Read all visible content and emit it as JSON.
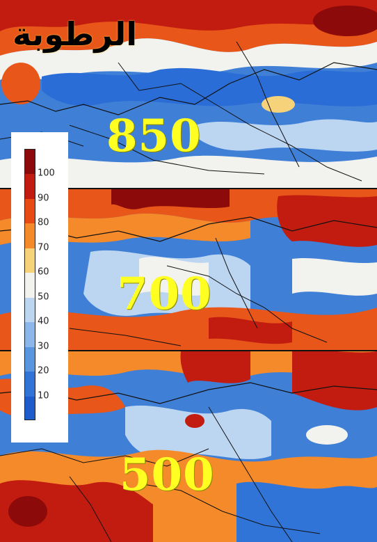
{
  "map": {
    "title": "الرطوبة",
    "levels": [
      {
        "id": "850",
        "label": "850"
      },
      {
        "id": "700",
        "label": "700"
      },
      {
        "id": "500",
        "label": "500"
      }
    ]
  },
  "legend": {
    "ticks": [
      "100",
      "90",
      "80",
      "70",
      "60",
      "50",
      "40",
      "30",
      "20",
      "10"
    ],
    "colors": [
      "#8c0a0a",
      "#c21c10",
      "#e84a14",
      "#f58a2a",
      "#f6d27a",
      "#f2f2ee",
      "#bcd6f2",
      "#8cb7ea",
      "#5a95e0",
      "#3174d8",
      "#1e5ccc"
    ]
  },
  "colors": {
    "level_label": "#ffff22",
    "humid_high": "#c21c10",
    "humid_low": "#3174d8",
    "border_lines": "#111111"
  }
}
